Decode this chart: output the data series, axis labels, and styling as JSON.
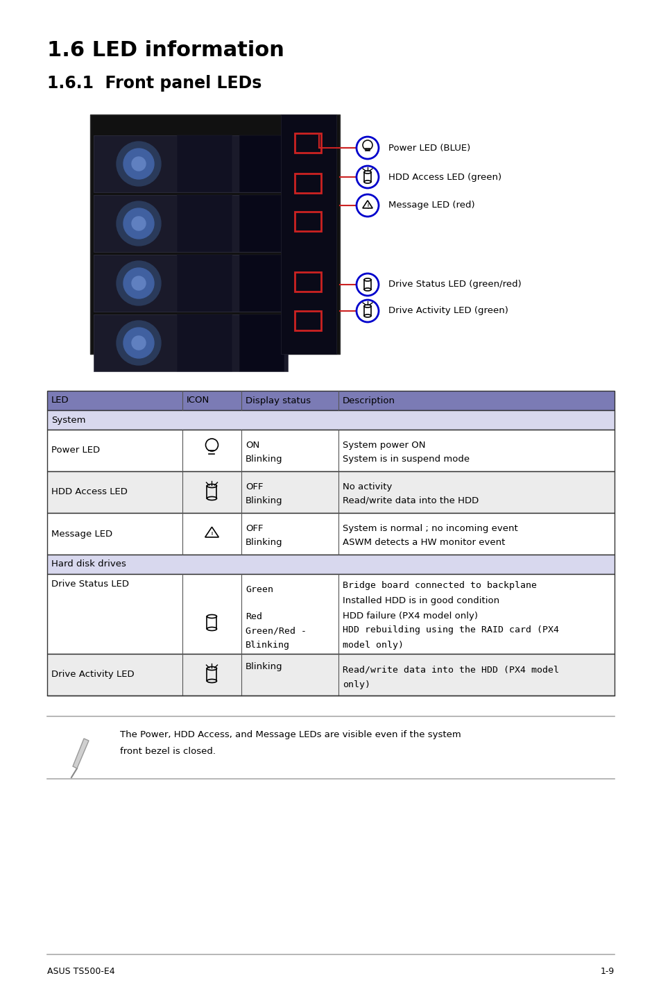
{
  "title1": "1.6 LED information",
  "title2": "1.6.1  Front panel LEDs",
  "bg_color": "#ffffff",
  "header_color": "#7b7bb5",
  "system_row_color": "#d8d8ee",
  "alt_row_color": "#ececec",
  "white_row_color": "#ffffff",
  "led_labels": [
    "Power LED (BLUE)",
    "HDD Access LED (green)",
    "Message LED (red)",
    "Drive Status LED (green/red)",
    "Drive Activity LED (green)"
  ],
  "footer_left": "ASUS TS500-E4",
  "footer_right": "1-9",
  "note_text1": "The Power, HDD Access, and Message LEDs are visible even if the system",
  "note_text2": "front bezel is closed."
}
